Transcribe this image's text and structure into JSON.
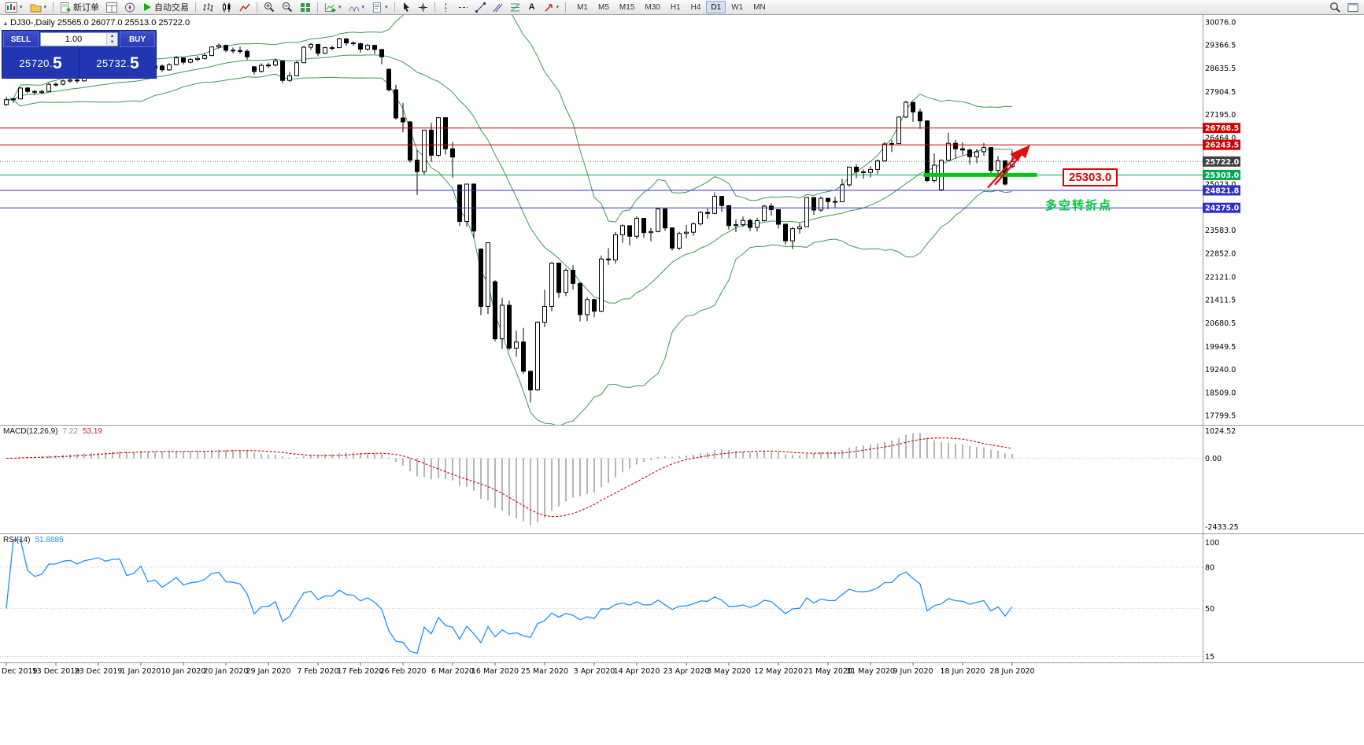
{
  "toolbar": {
    "new_order": "新订单",
    "auto_trading": "自动交易",
    "text_tool": "A",
    "timeframes": [
      "M1",
      "M5",
      "M15",
      "M30",
      "H1",
      "H4",
      "D1",
      "W1",
      "MN"
    ],
    "active_timeframe": "D1"
  },
  "chart": {
    "title": "DJ30-,Daily  25565.0 26077.0 25513.0 25722.0",
    "symbol": "DJ30-",
    "period": "Daily"
  },
  "trade_panel": {
    "sell_label": "SELL",
    "buy_label": "BUY",
    "volume": "1.00",
    "sell_price_main": "25720.",
    "sell_price_big": "5",
    "buy_price_main": "25732.",
    "buy_price_big": "5"
  },
  "colors": {
    "up_candle": "#ffffff",
    "down_candle": "#000000",
    "candle_outline": "#000000",
    "bollinger": "#3a9a50",
    "hline_red": "#d40000",
    "hline_blue": "#3030c8",
    "hline_green": "#00a84e",
    "support_green": "#00c814",
    "arrow_red": "#e01010",
    "macd_hist": "#b6b6b6",
    "macd_signal": "#d40000",
    "rsi": "#1e90ff",
    "bid_tag": "#404040"
  },
  "price_scale": {
    "labels": [
      30076.0,
      29366.5,
      28635.5,
      27904.5,
      27195.0,
      26464.0,
      25023.0,
      23583.0,
      22852.0,
      22121.0,
      21411.5,
      20680.5,
      19949.5,
      19240.0,
      18509.0,
      17799.5
    ],
    "tags": [
      {
        "text": "26768.5",
        "value": 26768.5,
        "bg": "#d40000"
      },
      {
        "text": "26243.5",
        "value": 26243.5,
        "bg": "#d40000"
      },
      {
        "text": "25722.0",
        "value": 25722.0,
        "bg": "#404040"
      },
      {
        "text": "25303.0",
        "value": 25303.0,
        "bg": "#00a84e"
      },
      {
        "text": "24821.8",
        "value": 24821.8,
        "bg": "#3030c8"
      },
      {
        "text": "24275.0",
        "value": 24275.0,
        "bg": "#3030c8"
      }
    ]
  },
  "hlines": [
    {
      "value": 26768.5,
      "color": "#d40000",
      "width": 1
    },
    {
      "value": 26243.5,
      "color": "#d40000",
      "width": 1
    },
    {
      "value": 25722.0,
      "color": "#707070",
      "width": 1,
      "dash": "1,2"
    },
    {
      "value": 25303.0,
      "color": "#00a84e",
      "width": 1
    },
    {
      "value": 24821.8,
      "color": "#3030c8",
      "width": 1
    },
    {
      "value": 24275.0,
      "color": "#3030c8",
      "width": 1
    }
  ],
  "annotations": {
    "price_label": {
      "text": "25303.0"
    },
    "pivot_text": {
      "text": "多空转折点"
    },
    "support_bar": {
      "value": 25303.0,
      "from_i": 129.5,
      "to_i": 145.5
    },
    "arrow": {
      "x1_i": 139,
      "p1": 24950,
      "x2_i": 143.8,
      "p2": 26150
    }
  },
  "chart_data": {
    "type": "candlestick",
    "symbol": "DJ30-",
    "timeframe": "Daily",
    "ohlc_display": {
      "open": 25565.0,
      "high": 26077.0,
      "low": 25513.0,
      "close": 25722.0
    },
    "y_range": [
      17700,
      30150
    ],
    "x_labels": [
      {
        "label": "Dec 2019",
        "i": 0
      },
      {
        "label": "13 Dec 2019",
        "i": 7
      },
      {
        "label": "23 Dec 2019",
        "i": 13
      },
      {
        "label": "1 Jan 2020",
        "i": 19
      },
      {
        "label": "10 Jan 2020",
        "i": 25
      },
      {
        "label": "20 Jan 2020",
        "i": 31
      },
      {
        "label": "29 Jan 2020",
        "i": 37
      },
      {
        "label": "7 Feb 2020",
        "i": 44
      },
      {
        "label": "17 Feb 2020",
        "i": 50
      },
      {
        "label": "26 Feb 2020",
        "i": 56
      },
      {
        "label": "6 Mar 2020",
        "i": 63
      },
      {
        "label": "16 Mar 2020",
        "i": 69
      },
      {
        "label": "25 Mar 2020",
        "i": 76
      },
      {
        "label": "3 Apr 2020",
        "i": 83
      },
      {
        "label": "14 Apr 2020",
        "i": 89
      },
      {
        "label": "23 Apr 2020",
        "i": 96
      },
      {
        "label": "3 May 2020",
        "i": 102
      },
      {
        "label": "12 May 2020",
        "i": 109
      },
      {
        "label": "21 May 2020",
        "i": 116
      },
      {
        "label": "31 May 2020",
        "i": 122
      },
      {
        "label": "9 Jun 2020",
        "i": 128
      },
      {
        "label": "18 Jun 2020",
        "i": 135
      },
      {
        "label": "28 Jun 2020",
        "i": 142
      }
    ],
    "indicators": {
      "bollinger": {
        "period": 20,
        "deviation": 2
      },
      "macd": {
        "label": "MACD(12,26,9)",
        "fast": 12,
        "slow": 26,
        "signal": 9,
        "values_display": [
          "7.22",
          "53.19"
        ],
        "scale_labels": [
          "1024.52",
          "0.00",
          "-2433.25"
        ]
      },
      "rsi": {
        "label": "RSI(14)",
        "period": 14,
        "value_display": "51.8885",
        "scale_labels": [
          100,
          80,
          50,
          15
        ],
        "levels": [
          80,
          50,
          15
        ]
      }
    },
    "candles": [
      [
        27500,
        27740,
        27460,
        27650
      ],
      [
        27650,
        27720,
        27550,
        27677
      ],
      [
        27677,
        28040,
        27660,
        28015
      ],
      [
        28015,
        28050,
        27850,
        27910
      ],
      [
        27910,
        27950,
        27800,
        27882
      ],
      [
        27882,
        27960,
        27820,
        27911
      ],
      [
        27911,
        28180,
        27890,
        28132
      ],
      [
        28132,
        28185,
        28060,
        28135
      ],
      [
        28135,
        28290,
        28100,
        28236
      ],
      [
        28236,
        28310,
        28180,
        28267
      ],
      [
        28267,
        28320,
        28170,
        28239
      ],
      [
        28239,
        28410,
        28220,
        28377
      ],
      [
        28377,
        28490,
        28340,
        28455
      ],
      [
        28455,
        28580,
        28420,
        28551
      ],
      [
        28551,
        28590,
        28470,
        28515
      ],
      [
        28515,
        28660,
        28500,
        28621
      ],
      [
        28621,
        28700,
        28580,
        28645
      ],
      [
        28645,
        28680,
        28420,
        28462
      ],
      [
        28462,
        28580,
        28410,
        28538
      ],
      [
        28538,
        28890,
        28530,
        28869
      ],
      [
        28869,
        28880,
        28560,
        28635
      ],
      [
        28635,
        28780,
        28565,
        28703
      ],
      [
        28703,
        28760,
        28520,
        28584
      ],
      [
        28584,
        28790,
        28555,
        28745
      ],
      [
        28745,
        29010,
        28720,
        28957
      ],
      [
        28957,
        28960,
        28750,
        28824
      ],
      [
        28824,
        28950,
        28780,
        28907
      ],
      [
        28907,
        29010,
        28850,
        28939
      ],
      [
        28939,
        29110,
        28900,
        29030
      ],
      [
        29030,
        29320,
        29010,
        29298
      ],
      [
        29298,
        29410,
        29250,
        29348
      ],
      [
        29348,
        29370,
        29130,
        29196
      ],
      [
        29196,
        29280,
        29100,
        29186
      ],
      [
        29186,
        29310,
        29090,
        29160
      ],
      [
        29160,
        29230,
        28900,
        28990
      ],
      [
        28680,
        28700,
        28440,
        28536
      ],
      [
        28536,
        28790,
        28500,
        28723
      ],
      [
        28723,
        28810,
        28640,
        28734
      ],
      [
        28734,
        28940,
        28690,
        28859
      ],
      [
        28859,
        28860,
        28170,
        28256
      ],
      [
        28256,
        28520,
        28200,
        28400
      ],
      [
        28400,
        28860,
        28390,
        28808
      ],
      [
        28808,
        29330,
        28800,
        29291
      ],
      [
        29291,
        29420,
        29210,
        29380
      ],
      [
        29380,
        29390,
        29010,
        29103
      ],
      [
        29103,
        29300,
        29080,
        29277
      ],
      [
        29277,
        29340,
        29200,
        29276
      ],
      [
        29276,
        29580,
        29260,
        29551
      ],
      [
        29551,
        29570,
        29340,
        29423
      ],
      [
        29423,
        29480,
        29330,
        29398
      ],
      [
        29398,
        29430,
        29120,
        29232
      ],
      [
        29232,
        29390,
        29180,
        29348
      ],
      [
        29348,
        29370,
        29080,
        29220
      ],
      [
        29220,
        29230,
        28760,
        28992
      ],
      [
        28600,
        28620,
        27910,
        27961
      ],
      [
        27961,
        28120,
        27030,
        27081
      ],
      [
        27081,
        27550,
        26630,
        26958
      ],
      [
        26958,
        26990,
        25690,
        25767
      ],
      [
        25767,
        26080,
        24680,
        25409
      ],
      [
        25409,
        26710,
        25320,
        26703
      ],
      [
        26703,
        26930,
        25710,
        25917
      ],
      [
        25917,
        27110,
        25880,
        27090
      ],
      [
        27090,
        27100,
        25940,
        26121
      ],
      [
        26121,
        26340,
        25220,
        25865
      ],
      [
        24990,
        25010,
        23710,
        23851
      ],
      [
        23851,
        25030,
        23690,
        25018
      ],
      [
        25018,
        25040,
        23330,
        23553
      ],
      [
        22990,
        23010,
        20930,
        21200
      ],
      [
        21200,
        23190,
        20960,
        23186
      ],
      [
        21970,
        22020,
        20110,
        20188
      ],
      [
        20188,
        21460,
        19880,
        21237
      ],
      [
        21237,
        21380,
        19830,
        19899
      ],
      [
        19899,
        20440,
        19630,
        20087
      ],
      [
        20087,
        20530,
        19090,
        19174
      ],
      [
        19174,
        19190,
        18210,
        18592
      ],
      [
        18592,
        20740,
        18560,
        20705
      ],
      [
        20705,
        21720,
        20550,
        21200
      ],
      [
        21200,
        22590,
        21050,
        22552
      ],
      [
        22552,
        22570,
        21470,
        21637
      ],
      [
        21637,
        22390,
        21520,
        22327
      ],
      [
        22327,
        22480,
        21720,
        21917
      ],
      [
        21917,
        21940,
        20730,
        20944
      ],
      [
        20944,
        21490,
        20740,
        21413
      ],
      [
        21413,
        21440,
        20860,
        21053
      ],
      [
        21053,
        22790,
        21020,
        22680
      ],
      [
        22680,
        23020,
        22490,
        22654
      ],
      [
        22654,
        23520,
        22530,
        23434
      ],
      [
        23434,
        23760,
        23180,
        23719
      ],
      [
        23719,
        23730,
        23100,
        23391
      ],
      [
        23391,
        24010,
        23300,
        23950
      ],
      [
        23950,
        23960,
        23340,
        23504
      ],
      [
        23504,
        23650,
        23230,
        23538
      ],
      [
        23538,
        24290,
        23510,
        24242
      ],
      [
        24242,
        24250,
        23560,
        23651
      ],
      [
        23651,
        23660,
        22940,
        23019
      ],
      [
        23019,
        23530,
        22960,
        23476
      ],
      [
        23476,
        23740,
        23320,
        23515
      ],
      [
        23515,
        23830,
        23410,
        23775
      ],
      [
        23775,
        24180,
        23720,
        24134
      ],
      [
        24134,
        24250,
        23940,
        24102
      ],
      [
        24102,
        24760,
        24080,
        24634
      ],
      [
        24634,
        24640,
        24150,
        24346
      ],
      [
        24346,
        24350,
        23600,
        23724
      ],
      [
        23724,
        23910,
        23520,
        23750
      ],
      [
        23750,
        24000,
        23690,
        23883
      ],
      [
        23883,
        23940,
        23550,
        23665
      ],
      [
        23665,
        23970,
        23540,
        23876
      ],
      [
        23876,
        24370,
        23850,
        24331
      ],
      [
        24331,
        24420,
        24030,
        24222
      ],
      [
        24222,
        24230,
        23630,
        23765
      ],
      [
        23765,
        23780,
        23120,
        23248
      ],
      [
        23248,
        23680,
        22990,
        23626
      ],
      [
        23626,
        23800,
        23470,
        23685
      ],
      [
        23685,
        24620,
        23680,
        24597
      ],
      [
        24597,
        24600,
        24060,
        24207
      ],
      [
        24207,
        24630,
        24150,
        24576
      ],
      [
        24576,
        24580,
        24240,
        24474
      ],
      [
        24474,
        24620,
        24290,
        24465
      ],
      [
        24465,
        25180,
        24460,
        24995
      ],
      [
        24995,
        25560,
        24930,
        25548
      ],
      [
        25548,
        25640,
        25210,
        25401
      ],
      [
        25401,
        25480,
        25180,
        25383
      ],
      [
        25383,
        25580,
        25230,
        25475
      ],
      [
        25475,
        25790,
        25330,
        25743
      ],
      [
        25743,
        26330,
        25710,
        26270
      ],
      [
        26270,
        26390,
        26020,
        26282
      ],
      [
        26282,
        27130,
        26280,
        27111
      ],
      [
        27111,
        27620,
        27080,
        27572
      ],
      [
        27572,
        27580,
        26960,
        27272
      ],
      [
        27272,
        27370,
        26740,
        26990
      ],
      [
        26990,
        27000,
        25080,
        25128
      ],
      [
        25128,
        25970,
        25070,
        25606
      ],
      [
        24840,
        25790,
        24800,
        25763
      ],
      [
        25763,
        26620,
        25760,
        26290
      ],
      [
        26290,
        26400,
        25810,
        26120
      ],
      [
        26120,
        26330,
        25920,
        26080
      ],
      [
        26080,
        26130,
        25630,
        25871
      ],
      [
        25871,
        26120,
        25670,
        26025
      ],
      [
        26025,
        26300,
        25900,
        26156
      ],
      [
        26156,
        26160,
        25270,
        25445
      ],
      [
        25445,
        25890,
        25340,
        25746
      ],
      [
        25746,
        25750,
        24970,
        25016
      ],
      [
        25565,
        26077,
        25513,
        25722
      ]
    ]
  }
}
